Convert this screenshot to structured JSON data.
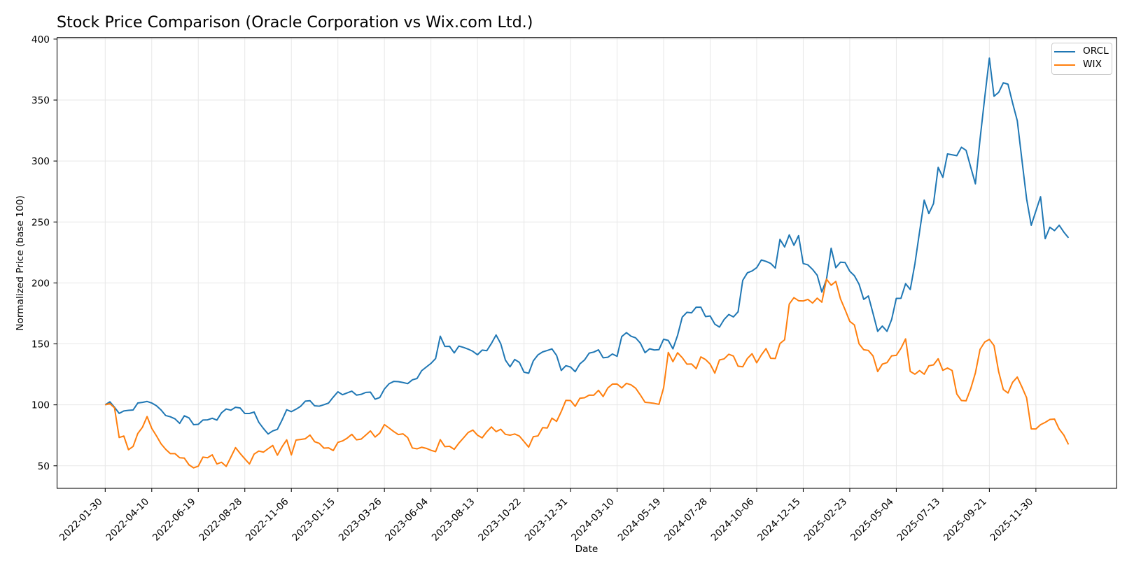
{
  "figure": {
    "title": "Stock Price Comparison (Oracle Corporation vs Wix.com Ltd.)",
    "xlabel": "Date",
    "ylabel": "Normalized Price (base 100)"
  },
  "legend": {
    "entries": [
      {
        "label": "ORCL",
        "color": "#1f77b4"
      },
      {
        "label": "WIX",
        "color": "#ff7f0e"
      }
    ]
  },
  "chart_data": {
    "type": "line",
    "title": "Stock Price Comparison (Oracle Corporation vs Wix.com Ltd.)",
    "xlabel": "Date",
    "ylabel": "Normalized Price (base 100)",
    "x_unit": "week",
    "x": [
      "2022-01-30",
      "2022-02-06",
      "2022-02-13",
      "2022-02-20",
      "2022-02-27",
      "2022-03-06",
      "2022-03-13",
      "2022-03-20",
      "2022-03-27",
      "2022-04-03",
      "2022-04-10",
      "2022-04-17",
      "2022-04-24",
      "2022-05-01",
      "2022-05-08",
      "2022-05-15",
      "2022-05-22",
      "2022-05-29",
      "2022-06-05",
      "2022-06-12",
      "2022-06-19",
      "2022-06-26",
      "2022-07-03",
      "2022-07-10",
      "2022-07-17",
      "2022-07-24",
      "2022-07-31",
      "2022-08-07",
      "2022-08-14",
      "2022-08-21",
      "2022-08-28",
      "2022-09-04",
      "2022-09-11",
      "2022-09-18",
      "2022-09-25",
      "2022-10-02",
      "2022-10-09",
      "2022-10-16",
      "2022-10-23",
      "2022-10-30",
      "2022-11-06",
      "2022-11-13",
      "2022-11-20",
      "2022-11-27",
      "2022-12-04",
      "2022-12-11",
      "2022-12-18",
      "2022-12-25",
      "2023-01-01",
      "2023-01-08",
      "2023-01-15",
      "2023-01-22",
      "2023-01-29",
      "2023-02-05",
      "2023-02-12",
      "2023-02-19",
      "2023-02-26",
      "2023-03-05",
      "2023-03-12",
      "2023-03-19",
      "2023-03-26",
      "2023-04-02",
      "2023-04-09",
      "2023-04-16",
      "2023-04-23",
      "2023-04-30",
      "2023-05-07",
      "2023-05-14",
      "2023-05-21",
      "2023-05-28",
      "2023-06-04",
      "2023-06-11",
      "2023-06-18",
      "2023-06-25",
      "2023-07-02",
      "2023-07-09",
      "2023-07-16",
      "2023-07-23",
      "2023-07-30",
      "2023-08-06",
      "2023-08-13",
      "2023-08-20",
      "2023-08-27",
      "2023-09-03",
      "2023-09-10",
      "2023-09-17",
      "2023-09-24",
      "2023-10-01",
      "2023-10-08",
      "2023-10-15",
      "2023-10-22",
      "2023-10-29",
      "2023-11-05",
      "2023-11-12",
      "2023-11-19",
      "2023-11-26",
      "2023-12-03",
      "2023-12-10",
      "2023-12-17",
      "2023-12-24",
      "2023-12-31",
      "2024-01-07",
      "2024-01-14",
      "2024-01-21",
      "2024-01-28",
      "2024-02-04",
      "2024-02-11",
      "2024-02-18",
      "2024-02-25",
      "2024-03-03",
      "2024-03-10",
      "2024-03-17",
      "2024-03-24",
      "2024-03-31",
      "2024-04-07",
      "2024-04-14",
      "2024-04-21",
      "2024-04-28",
      "2024-05-05",
      "2024-05-12",
      "2024-05-19",
      "2024-05-26",
      "2024-06-02",
      "2024-06-09",
      "2024-06-16",
      "2024-06-23",
      "2024-06-30",
      "2024-07-07",
      "2024-07-14",
      "2024-07-21",
      "2024-07-28",
      "2024-08-04",
      "2024-08-11",
      "2024-08-18",
      "2024-08-25",
      "2024-09-01",
      "2024-09-08",
      "2024-09-15",
      "2024-09-22",
      "2024-09-29",
      "2024-10-06",
      "2024-10-13",
      "2024-10-20",
      "2024-10-27",
      "2024-11-03",
      "2024-11-10",
      "2024-11-17",
      "2024-11-24",
      "2024-12-01",
      "2024-12-08",
      "2024-12-15",
      "2024-12-22",
      "2024-12-29",
      "2025-01-05",
      "2025-01-12",
      "2025-01-19",
      "2025-01-26",
      "2025-02-02",
      "2025-02-09",
      "2025-02-16",
      "2025-02-23",
      "2025-03-02",
      "2025-03-09",
      "2025-03-16",
      "2025-03-23",
      "2025-03-30",
      "2025-04-06",
      "2025-04-13",
      "2025-04-20",
      "2025-04-27",
      "2025-05-04",
      "2025-05-11",
      "2025-05-18",
      "2025-05-25",
      "2025-06-01",
      "2025-06-08",
      "2025-06-15",
      "2025-06-22",
      "2025-06-29",
      "2025-07-06",
      "2025-07-13",
      "2025-07-20",
      "2025-07-27",
      "2025-08-03",
      "2025-08-10",
      "2025-08-17",
      "2025-08-24",
      "2025-08-31",
      "2025-09-07",
      "2025-09-14",
      "2025-09-21",
      "2025-09-28",
      "2025-10-05",
      "2025-10-12",
      "2025-10-19",
      "2025-10-26",
      "2025-11-02",
      "2025-11-09",
      "2025-11-16",
      "2025-11-23",
      "2025-11-30",
      "2025-12-07",
      "2025-12-14",
      "2025-12-21",
      "2025-12-28",
      "2026-01-04",
      "2026-01-11",
      "2026-01-18"
    ],
    "x_tick_indices": [
      0,
      10,
      20,
      30,
      40,
      50,
      60,
      70,
      80,
      90,
      100,
      110,
      120,
      130,
      140,
      150,
      160,
      170,
      180,
      190,
      200
    ],
    "x_tick_labels": [
      "2022-01-30",
      "2022-04-10",
      "2022-06-19",
      "2022-08-28",
      "2022-11-06",
      "2023-01-15",
      "2023-03-26",
      "2023-06-04",
      "2023-08-13",
      "2023-10-22",
      "2023-12-31",
      "2024-03-10",
      "2024-05-19",
      "2024-07-28",
      "2024-10-06",
      "2024-12-15",
      "2025-02-23",
      "2025-05-04",
      "2025-07-13",
      "2025-09-21",
      "2025-11-30"
    ],
    "y_ticks": [
      50,
      100,
      150,
      200,
      250,
      300,
      350,
      400
    ],
    "ylim": [
      31.5,
      401.2
    ],
    "grid": true,
    "legend_position": "upper right",
    "series": [
      {
        "name": "ORCL",
        "color": "#1f77b4",
        "values": [
          100,
          102.5,
          98,
          93,
          95,
          95.5,
          95.8,
          101.5,
          102,
          102.8,
          101.5,
          99.3,
          95.8,
          91.2,
          90.2,
          88.5,
          84.8,
          91,
          89.3,
          83.7,
          84,
          87.5,
          87.7,
          89,
          87.5,
          93.5,
          96.6,
          95.6,
          98,
          97.4,
          92.9,
          92.9,
          94.1,
          85.7,
          80.6,
          76.1,
          78.6,
          79.9,
          87.5,
          96,
          94.4,
          96.4,
          98.8,
          103,
          103.4,
          99.2,
          98.9,
          100.1,
          101.5,
          106.3,
          110.7,
          108.3,
          109.8,
          111.2,
          108,
          108.6,
          110.2,
          110.4,
          104.6,
          106,
          113,
          117.3,
          119.2,
          119,
          118.3,
          117.4,
          120.5,
          121.6,
          128,
          131,
          134,
          138,
          156.3,
          147.9,
          148,
          142.6,
          148.2,
          147.1,
          145.7,
          143.9,
          141.1,
          144.9,
          144.4,
          150.4,
          157.3,
          150.1,
          136.7,
          131.2,
          137.2,
          134.8,
          126.8,
          125.9,
          136.1,
          141,
          143.4,
          144.6,
          145.9,
          140.5,
          128.2,
          132.1,
          131,
          127.2,
          133.6,
          136.8,
          142.4,
          143.3,
          145.1,
          138.6,
          139,
          141.7,
          139.8,
          156,
          159.2,
          156.3,
          154.9,
          150.6,
          142.8,
          146,
          145,
          145.3,
          153.8,
          152.8,
          145.9,
          157,
          171.9,
          175.9,
          175.5,
          180.1,
          180.1,
          172.4,
          172.9,
          166.2,
          163.8,
          170,
          174.1,
          172.1,
          176.3,
          202.1,
          208.3,
          209.8,
          212.5,
          218.8,
          217.7,
          216,
          212.2,
          235.7,
          229.5,
          239.4,
          230.9,
          238.8,
          215.9,
          214.8,
          211.1,
          206.3,
          192.5,
          203,
          228.5,
          212.5,
          217,
          216.7,
          209.6,
          205.9,
          198.9,
          186.5,
          189.3,
          175,
          160.3,
          164.6,
          160.3,
          170,
          187.3,
          187.4,
          199.4,
          194.6,
          215.7,
          242,
          267.9,
          256.9,
          265.1,
          294.8,
          286.6,
          305.8,
          305.1,
          304.4,
          311.3,
          308.7,
          294.8,
          281.3,
          318,
          352,
          384.4,
          353.1,
          356.3,
          364.2,
          363,
          347.5,
          333,
          300.7,
          269,
          247.3,
          259,
          270.7,
          236.3,
          245.7,
          242.9,
          247.3,
          241.7,
          237
        ]
      },
      {
        "name": "WIX",
        "color": "#ff7f0e",
        "values": [
          100,
          101,
          97.5,
          73.2,
          74.4,
          63.2,
          65.9,
          76.5,
          81.6,
          90.4,
          80.7,
          74.6,
          68,
          63.5,
          60,
          60,
          56.6,
          56.3,
          50.8,
          48.3,
          49.7,
          57.1,
          56.6,
          59,
          51.5,
          52.9,
          49.5,
          57.1,
          64.9,
          60.1,
          55.7,
          51.5,
          59.6,
          62.1,
          61.2,
          64,
          66.7,
          58.7,
          65.6,
          71.3,
          58.9,
          71.1,
          71.6,
          72.2,
          75.2,
          69.8,
          68.4,
          64.5,
          64.7,
          62.5,
          69.2,
          70.4,
          72.7,
          75.8,
          71.3,
          71.9,
          75.2,
          78.6,
          73.6,
          76.8,
          83.8,
          81,
          78.1,
          75.6,
          76.2,
          73.1,
          64.6,
          63.9,
          65.2,
          64.3,
          62.7,
          61.6,
          71.4,
          65.7,
          66,
          63.5,
          68.6,
          72.9,
          77.3,
          79.3,
          75.1,
          72.9,
          77.9,
          81.9,
          78,
          80,
          75.8,
          75.1,
          76.1,
          74.4,
          69.9,
          65.3,
          73.9,
          74.5,
          81.3,
          81,
          89.1,
          86.4,
          94.5,
          103.7,
          103.5,
          98.8,
          105.4,
          105.8,
          108,
          107.9,
          111.9,
          106.8,
          113.8,
          117,
          117.1,
          113.9,
          117.6,
          116.4,
          113.6,
          108.1,
          102.1,
          101.7,
          101.2,
          100.4,
          114,
          143,
          135.4,
          142.7,
          138.7,
          133.4,
          133.5,
          129.7,
          139.3,
          137.2,
          133.4,
          126,
          136.8,
          137.7,
          141.5,
          140,
          131.7,
          131.2,
          138,
          141.9,
          134.5,
          140.9,
          146.1,
          138.2,
          138,
          150.3,
          153.4,
          182.7,
          187.9,
          185.4,
          185.2,
          186.5,
          183.5,
          187.5,
          184.2,
          203.1,
          198.1,
          201.2,
          187,
          178,
          168.5,
          165.5,
          150,
          145.2,
          144.6,
          140.1,
          127.3,
          133.4,
          134.6,
          140.2,
          140.6,
          146.4,
          154.1,
          127.4,
          125.1,
          128.1,
          125.1,
          132,
          132.8,
          137.8,
          128.3,
          130.2,
          128.1,
          108.9,
          103.5,
          103.3,
          113.3,
          126.2,
          145.5,
          151.5,
          153.7,
          148.6,
          127.1,
          112.5,
          109.7,
          118.5,
          122.8,
          114.6,
          105.8,
          80.3,
          80.2,
          83.7,
          85.6,
          88,
          88.3,
          80.2,
          75.2,
          67.5
        ]
      }
    ]
  }
}
